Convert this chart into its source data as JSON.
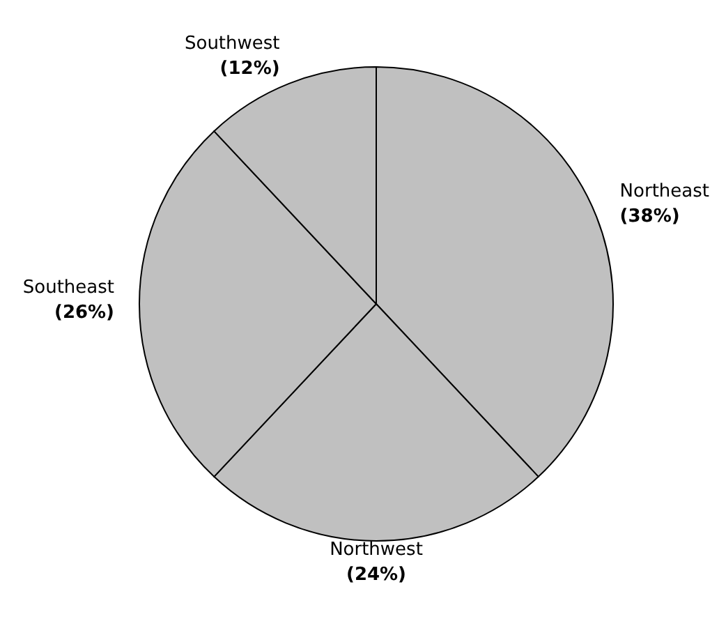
{
  "chart_data": {
    "type": "pie",
    "categories": [
      "Northeast",
      "Northwest",
      "Southeast",
      "Southwest"
    ],
    "values": [
      38,
      24,
      26,
      12
    ],
    "colors": [
      "#c0c0c0",
      "#c0c0c0",
      "#c0c0c0",
      "#c0c0c0"
    ],
    "value_labels": [
      "(38%)",
      "(24%)",
      "(26%)",
      "(12%)"
    ],
    "legend": false
  }
}
